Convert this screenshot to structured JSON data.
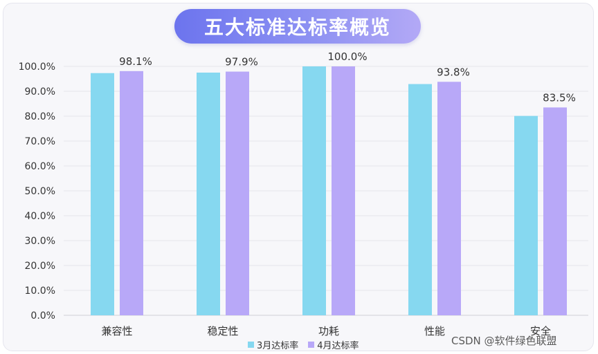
{
  "chart_data": {
    "type": "bar",
    "title": "五大标准达标率概览",
    "categories": [
      "兼容性",
      "稳定性",
      "功耗",
      "性能",
      "安全"
    ],
    "series": [
      {
        "name": "3月达标率",
        "values": [
          97.3,
          97.5,
          100.0,
          92.9,
          80.1
        ],
        "color": "#86d8f0"
      },
      {
        "name": "4月达标率",
        "values": [
          98.1,
          97.9,
          100.0,
          93.8,
          83.5
        ],
        "color": "#b8a8f8"
      }
    ],
    "data_labels": [
      "98.1%",
      "97.9%",
      "100.0%",
      "93.8%",
      "83.5%"
    ],
    "y_ticks": [
      "0.0%",
      "10.0%",
      "20.0%",
      "30.0%",
      "40.0%",
      "50.0%",
      "60.0%",
      "70.0%",
      "80.0%",
      "90.0%",
      "100.0%"
    ],
    "ylim": [
      0,
      100
    ],
    "grid": true,
    "legend_position": "bottom"
  },
  "watermark": "CSDN @软件绿色联盟"
}
